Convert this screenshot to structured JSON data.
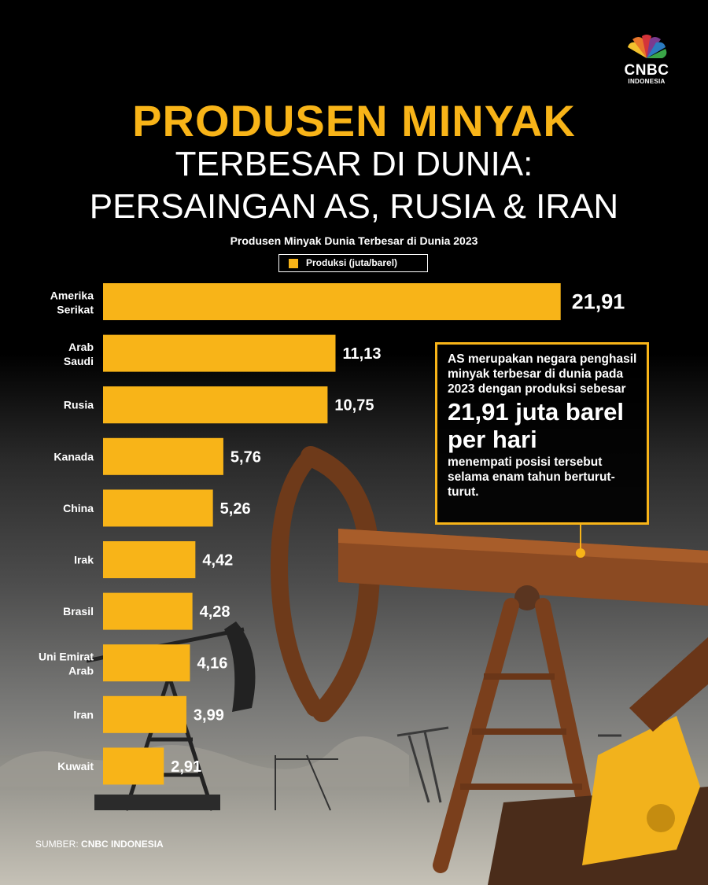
{
  "brand": {
    "name": "CNBC",
    "sub": "INDONESIA"
  },
  "title": {
    "line1": "PRODUSEN MINYAK",
    "line2": "TERBESAR DI DUNIA:",
    "line3": "PERSAINGAN AS, RUSIA & IRAN"
  },
  "colors": {
    "accent": "#f8b418",
    "text": "#ffffff",
    "background": "#000000"
  },
  "chart_data": {
    "type": "bar",
    "orientation": "horizontal",
    "title": "Produsen Minyak Dunia Terbesar di Dunia 2023",
    "legend": {
      "label": "Produksi (juta/barel)",
      "placement": "top"
    },
    "categories": [
      [
        "Amerika",
        "Serikat"
      ],
      [
        "Arab",
        "Saudi"
      ],
      [
        "Rusia"
      ],
      [
        "Kanada"
      ],
      [
        "China"
      ],
      [
        "Irak"
      ],
      [
        "Brasil"
      ],
      [
        "Uni Emirat",
        "Arab"
      ],
      [
        "Iran"
      ],
      [
        "Kuwait"
      ]
    ],
    "series": [
      {
        "name": "Produksi (juta/barel)",
        "values": [
          21.91,
          11.13,
          10.75,
          5.76,
          5.26,
          4.42,
          4.28,
          4.16,
          3.99,
          2.91
        ],
        "labels": [
          "21,91",
          "11,13",
          "10,75",
          "5,76",
          "5,26",
          "4,42",
          "4,28",
          "4,16",
          "3,99",
          "2,91"
        ]
      }
    ],
    "grid": false
  },
  "callout": {
    "intro": "AS merupakan negara penghasil minyak terbesar di dunia pada 2023 dengan produksi sebesar",
    "highlight": "21,91 juta barel per hari",
    "outro": "menempati posisi tersebut selama enam tahun berturut-turut."
  },
  "source": {
    "label": "SUMBER:",
    "value": "CNBC INDONESIA"
  }
}
